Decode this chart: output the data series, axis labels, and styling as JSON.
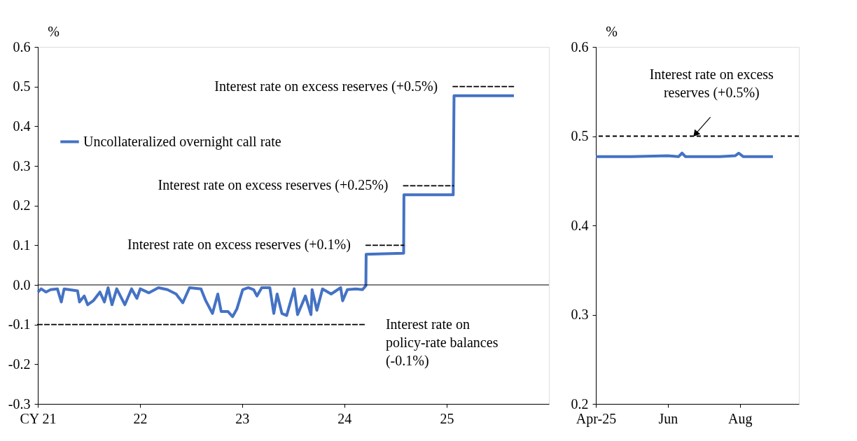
{
  "chart_data": [
    {
      "type": "line",
      "ylabel": "%",
      "xlim": [
        "2021-01-01",
        "2026-01-01"
      ],
      "xticks": [
        {
          "value": "2021-01-01",
          "label": "CY 21"
        },
        {
          "value": "2022-01-01",
          "label": "22"
        },
        {
          "value": "2023-01-01",
          "label": "23"
        },
        {
          "value": "2024-01-01",
          "label": "24"
        },
        {
          "value": "2025-01-01",
          "label": "25"
        }
      ],
      "ylim": [
        -0.3,
        0.6
      ],
      "yticks": [
        -0.3,
        -0.2,
        -0.1,
        {
          "value": 0,
          "label": "0.0"
        },
        0.1,
        0.2,
        0.3,
        0.4,
        0.5,
        0.6
      ],
      "grid": false,
      "legend": "top left",
      "series": [
        {
          "name": "Uncollateralized overnight call rate",
          "color": "#4472c4",
          "type": "line",
          "x": [
            "2021-01-01",
            "2021-01-13",
            "2021-01-30",
            "2021-02-16",
            "2021-03-12",
            "2021-03-26",
            "2021-04-05",
            "2021-05-23",
            "2021-05-30",
            "2021-06-16",
            "2021-06-28",
            "2021-07-18",
            "2021-08-11",
            "2021-08-27",
            "2021-09-09",
            "2021-09-23",
            "2021-10-10",
            "2021-11-08",
            "2021-12-02",
            "2021-12-21",
            "2022-01-02",
            "2022-02-02",
            "2022-03-08",
            "2022-04-09",
            "2022-05-10",
            "2022-06-03",
            "2022-06-27",
            "2022-08-07",
            "2022-08-24",
            "2022-09-17",
            "2022-10-06",
            "2022-10-18",
            "2022-11-11",
            "2022-11-28",
            "2022-12-13",
            "2023-01-03",
            "2023-01-23",
            "2023-02-11",
            "2023-02-23",
            "2023-03-12",
            "2023-04-10",
            "2023-04-24",
            "2023-05-06",
            "2023-05-23",
            "2023-06-09",
            "2023-07-06",
            "2023-07-18",
            "2023-08-15",
            "2023-09-04",
            "2023-09-08",
            "2023-09-25",
            "2023-10-15",
            "2023-11-15",
            "2023-12-19",
            "2023-12-26",
            "2024-01-12",
            "2024-02-11",
            "2024-03-06",
            "2024-03-18",
            "2024-03-19",
            "2024-07-31",
            "2024-08-01",
            "2025-01-24",
            "2025-01-27",
            "2025-08-29"
          ],
          "values": [
            -0.018,
            -0.01,
            -0.018,
            -0.012,
            -0.01,
            -0.043,
            -0.01,
            -0.015,
            -0.043,
            -0.028,
            -0.05,
            -0.04,
            -0.018,
            -0.043,
            -0.007,
            -0.05,
            -0.01,
            -0.05,
            -0.01,
            -0.034,
            -0.01,
            -0.02,
            -0.007,
            -0.012,
            -0.023,
            -0.045,
            -0.007,
            -0.01,
            -0.04,
            -0.072,
            -0.023,
            -0.067,
            -0.067,
            -0.08,
            -0.061,
            -0.012,
            -0.007,
            -0.012,
            -0.028,
            -0.007,
            -0.007,
            -0.072,
            -0.023,
            -0.072,
            -0.077,
            -0.01,
            -0.075,
            -0.028,
            -0.075,
            -0.012,
            -0.064,
            -0.01,
            -0.023,
            -0.007,
            -0.04,
            -0.012,
            -0.01,
            -0.012,
            -0.002,
            0.077,
            0.08,
            0.227,
            0.227,
            0.477,
            0.477
          ]
        },
        {
          "color": "#000000",
          "type": "line",
          "line_style": "dashed",
          "x": [
            "2021-01-01",
            "2024-03-19"
          ],
          "values": [
            -0.1,
            -0.1
          ]
        },
        {
          "color": "#000000",
          "type": "line",
          "line_style": "dashed",
          "x": [
            "2024-03-19",
            "2024-07-31"
          ],
          "values": [
            0.1,
            0.1
          ]
        },
        {
          "color": "#000000",
          "type": "line",
          "line_style": "dashed",
          "x": [
            "2024-07-31",
            "2025-01-24"
          ],
          "values": [
            0.25,
            0.25
          ]
        },
        {
          "color": "#000000",
          "type": "line",
          "line_style": "dashed",
          "x": [
            "2025-01-24",
            "2025-08-29"
          ],
          "values": [
            0.5,
            0.5
          ]
        }
      ],
      "ref_lines": [
        {
          "axis": "y",
          "value": 0,
          "color": "#000000",
          "line_style": "solid"
        }
      ],
      "annotations": [
        {
          "text": "Interest rate on excess reserves (+0.5%)",
          "x": "2025-01-24",
          "y": 0.5
        },
        {
          "text": "Interest rate on excess reserves (+0.25%)",
          "x": "2024-07-31",
          "y": 0.25
        },
        {
          "text": "Interest rate on excess reserves (+0.1%)",
          "x": "2024-03-19",
          "y": 0.1
        },
        {
          "text": "Interest rate on\npolicy-rate balances\n(-0.1%)",
          "x": "2024-03-19",
          "y": -0.1
        }
      ]
    },
    {
      "type": "line",
      "ylabel": "%",
      "xlim": [
        "2025-04-01",
        "2025-09-20"
      ],
      "xticks": [
        {
          "value": "2025-04-01",
          "label": "Apr-25"
        },
        {
          "value": "2025-06-01",
          "label": "Jun"
        },
        {
          "value": "2025-08-01",
          "label": "Aug"
        }
      ],
      "ylim": [
        0.2,
        0.6
      ],
      "yticks": [
        0.2,
        0.3,
        0.4,
        0.5,
        0.6
      ],
      "grid": false,
      "legend": false,
      "series": [
        {
          "color": "#4472c4",
          "type": "line",
          "x": [
            "2025-04-01",
            "2025-05-01",
            "2025-06-01",
            "2025-06-10",
            "2025-06-13",
            "2025-06-16",
            "2025-07-15",
            "2025-07-28",
            "2025-07-31",
            "2025-08-04",
            "2025-08-29"
          ],
          "values": [
            0.477,
            0.477,
            0.478,
            0.477,
            0.481,
            0.477,
            0.477,
            0.478,
            0.481,
            0.477,
            0.477
          ]
        }
      ],
      "ref_lines": [
        {
          "axis": "y",
          "value": 0.5,
          "color": "#000000",
          "line_style": "dashed"
        }
      ],
      "annotations": [
        {
          "text": "Interest rate on excess\nreserves (+0.5%)",
          "x": "2025-06-25",
          "y": 0.5
        }
      ]
    }
  ]
}
